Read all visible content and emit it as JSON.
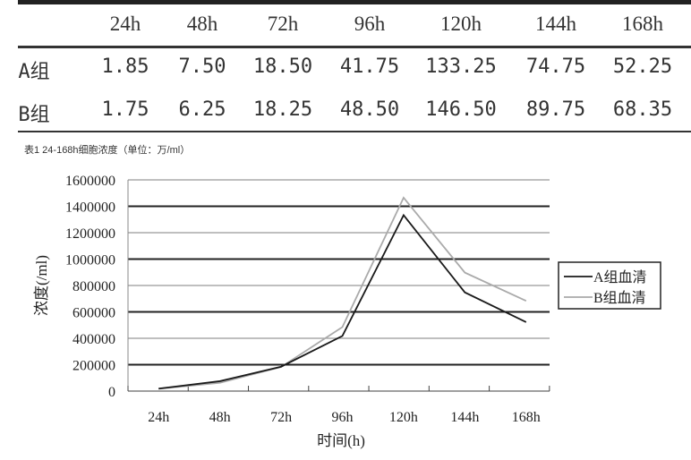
{
  "table": {
    "columns": [
      "24h",
      "48h",
      "72h",
      "96h",
      "120h",
      "144h",
      "168h"
    ],
    "rows": [
      {
        "label": "A组",
        "values": [
          "1.85",
          "7.50",
          "18.50",
          "41.75",
          "133.25",
          "74.75",
          "52.25"
        ]
      },
      {
        "label": "B组",
        "values": [
          "1.75",
          "6.25",
          "18.25",
          "48.50",
          "146.50",
          "89.75",
          "68.35"
        ]
      }
    ],
    "caption": "表1 24-168h细胞浓度（单位：万/ml）"
  },
  "chart_data": {
    "type": "line",
    "categories": [
      "24h",
      "48h",
      "72h",
      "96h",
      "120h",
      "144h",
      "168h"
    ],
    "series": [
      {
        "name": "A组血清",
        "color": "#1a1a1a",
        "values": [
          18500,
          75000,
          185000,
          417500,
          1332500,
          747500,
          522500
        ]
      },
      {
        "name": "B组血清",
        "color": "#aaaaaa",
        "values": [
          17500,
          62500,
          182500,
          485000,
          1465000,
          897500,
          683500
        ]
      }
    ],
    "xlabel": "时间(h)",
    "ylabel": "浓度(/ml)",
    "ylim": [
      0,
      1600000
    ],
    "yticks": [
      "0",
      "200000",
      "400000",
      "600000",
      "800000",
      "1000000",
      "1200000",
      "1400000",
      "1600000"
    ],
    "grid": true,
    "legend": "right"
  }
}
